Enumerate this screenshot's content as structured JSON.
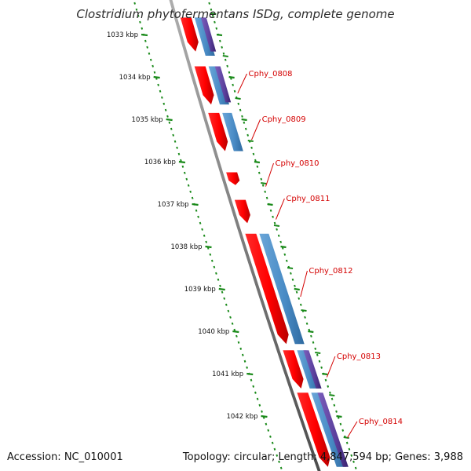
{
  "title": "Clostridium phytofermentans ISDg, complete genome",
  "footer": {
    "accession": "Accession: NC_010001",
    "topology": "Topology: circular; Length: 4,847,594 bp; Genes: 3,988"
  },
  "colors": {
    "gene_red": "#ff0000",
    "feature_blue": "#4a8cc6",
    "feature_purple": "#5b3f9c",
    "backbone": "#808080",
    "tick_green": "#1a8a1a",
    "label_red": "#d40000"
  },
  "scale": {
    "unit": "kbp",
    "ticks": [
      {
        "kbp": 1033,
        "label": "1033 kbp"
      },
      {
        "kbp": 1034,
        "label": "1034 kbp"
      },
      {
        "kbp": 1035,
        "label": "1035 kbp"
      },
      {
        "kbp": 1036,
        "label": "1036 kbp"
      },
      {
        "kbp": 1037,
        "label": "1037 kbp"
      },
      {
        "kbp": 1038,
        "label": "1038 kbp"
      },
      {
        "kbp": 1039,
        "label": "1039 kbp"
      },
      {
        "kbp": 1040,
        "label": "1040 kbp"
      },
      {
        "kbp": 1041,
        "label": "1041 kbp"
      },
      {
        "kbp": 1042,
        "label": "1042 kbp"
      }
    ]
  },
  "genes": [
    {
      "name": "",
      "start_kbp": 1032.6,
      "end_kbp": 1033.4
    },
    {
      "name": "Cphy_0808",
      "start_kbp": 1033.75,
      "end_kbp": 1034.65
    },
    {
      "name": "Cphy_0809",
      "start_kbp": 1034.85,
      "end_kbp": 1035.75
    },
    {
      "name": "Cphy_0810",
      "start_kbp": 1036.25,
      "end_kbp": 1036.55
    },
    {
      "name": "Cphy_0811",
      "start_kbp": 1036.9,
      "end_kbp": 1037.45
    },
    {
      "name": "Cphy_0812",
      "start_kbp": 1037.7,
      "end_kbp": 1040.3
    },
    {
      "name": "Cphy_0813",
      "start_kbp": 1040.45,
      "end_kbp": 1041.35
    },
    {
      "name": "Cphy_0814",
      "start_kbp": 1041.45,
      "end_kbp": 1043.2
    }
  ],
  "blue_features": [
    {
      "start_kbp": 1032.6,
      "end_kbp": 1033.5
    },
    {
      "start_kbp": 1033.75,
      "end_kbp": 1034.65
    },
    {
      "start_kbp": 1034.85,
      "end_kbp": 1035.75
    },
    {
      "start_kbp": 1037.7,
      "end_kbp": 1040.3
    },
    {
      "start_kbp": 1040.45,
      "end_kbp": 1041.35
    },
    {
      "start_kbp": 1041.45,
      "end_kbp": 1043.2
    }
  ],
  "purple_features": [
    {
      "start_kbp": 1032.6,
      "end_kbp": 1033.4
    },
    {
      "start_kbp": 1033.75,
      "end_kbp": 1034.6
    },
    {
      "start_kbp": 1040.45,
      "end_kbp": 1041.35
    },
    {
      "start_kbp": 1041.45,
      "end_kbp": 1043.2
    }
  ]
}
